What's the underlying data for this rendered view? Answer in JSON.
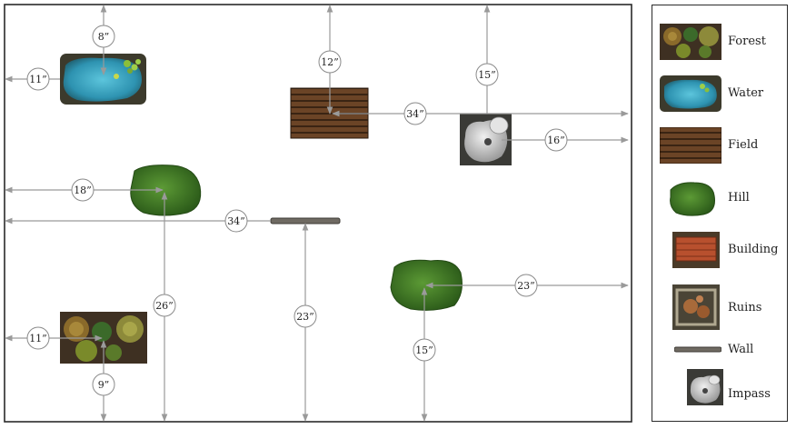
{
  "map": {
    "measurements": [
      {
        "id": "water-top",
        "label": "8”"
      },
      {
        "id": "water-left",
        "label": "11”"
      },
      {
        "id": "field-top",
        "label": "12”"
      },
      {
        "id": "field-right",
        "label": "34”"
      },
      {
        "id": "impass-top",
        "label": "15”"
      },
      {
        "id": "impass-right",
        "label": "16”"
      },
      {
        "id": "hill1-left",
        "label": "18”"
      },
      {
        "id": "wall-left",
        "label": "34”"
      },
      {
        "id": "hill1-bottom",
        "label": "26”"
      },
      {
        "id": "wall-bottom",
        "label": "23”"
      },
      {
        "id": "hill2-right",
        "label": "23”"
      },
      {
        "id": "hill2-bottom",
        "label": "15”"
      },
      {
        "id": "forest-left",
        "label": "11”"
      },
      {
        "id": "forest-bottom",
        "label": "9”"
      }
    ]
  },
  "legend": {
    "items": [
      {
        "key": "forest",
        "label": "Forest"
      },
      {
        "key": "water",
        "label": "Water"
      },
      {
        "key": "field",
        "label": "Field"
      },
      {
        "key": "hill",
        "label": "Hill"
      },
      {
        "key": "building",
        "label": "Building"
      },
      {
        "key": "ruins",
        "label": "Ruins"
      },
      {
        "key": "wall",
        "label": "Wall"
      },
      {
        "key": "impass",
        "label": "Impass"
      }
    ]
  },
  "colors": {
    "border": "#2a2a2a",
    "arrow": "#9a9a9a",
    "water": "#3aa7c4",
    "hill": "#3f7a25",
    "field": "#5a3a22",
    "rock": "#d8d8d8",
    "ruins": "#a86a3a",
    "building": "#b8502e"
  }
}
